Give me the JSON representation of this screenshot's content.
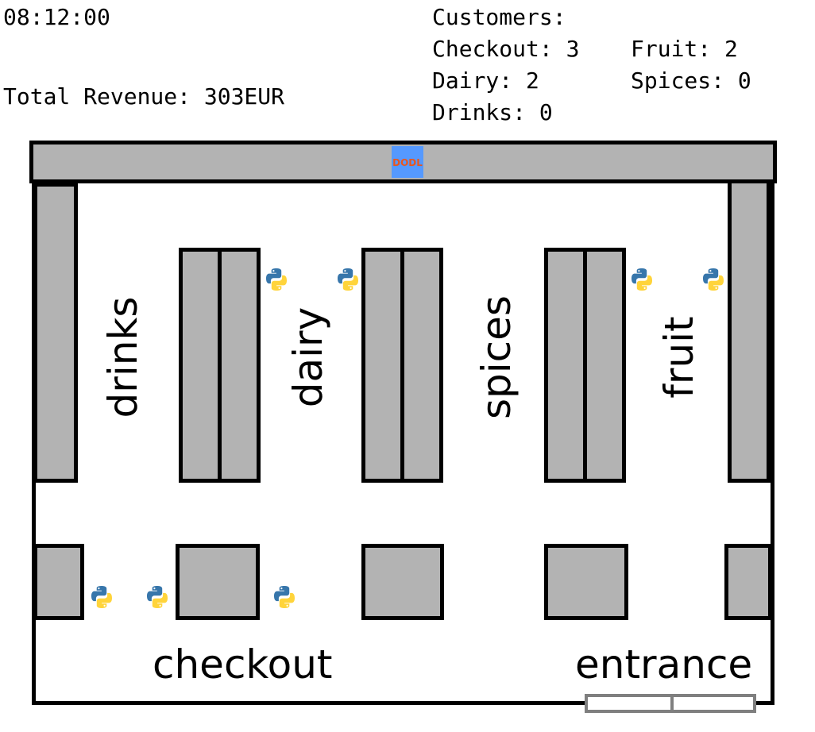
{
  "hud": {
    "clock": "08:12:00",
    "revenue": "Total Revenue: 303EUR",
    "customers_title": "Customers:",
    "checkout": "Checkout: 3",
    "fruit": "Fruit: 2",
    "dairy": "Dairy: 2",
    "spices": "Spices: 0",
    "drinks": "Drinks: 0"
  },
  "sections": {
    "drinks": "drinks",
    "dairy": "dairy",
    "spices": "spices",
    "fruit": "fruit",
    "checkout": "checkout",
    "entrance": "entrance"
  },
  "icons": {
    "customer": "python-logo-icon",
    "top_wall": "dodl-logo-icon"
  },
  "colors": {
    "shelf": "#b3b3b3",
    "walls": "#000000",
    "door": "#7f7f7f",
    "python_blue": "#3776ab",
    "python_yellow": "#ffd43b",
    "logo_bg": "#5599ff"
  }
}
